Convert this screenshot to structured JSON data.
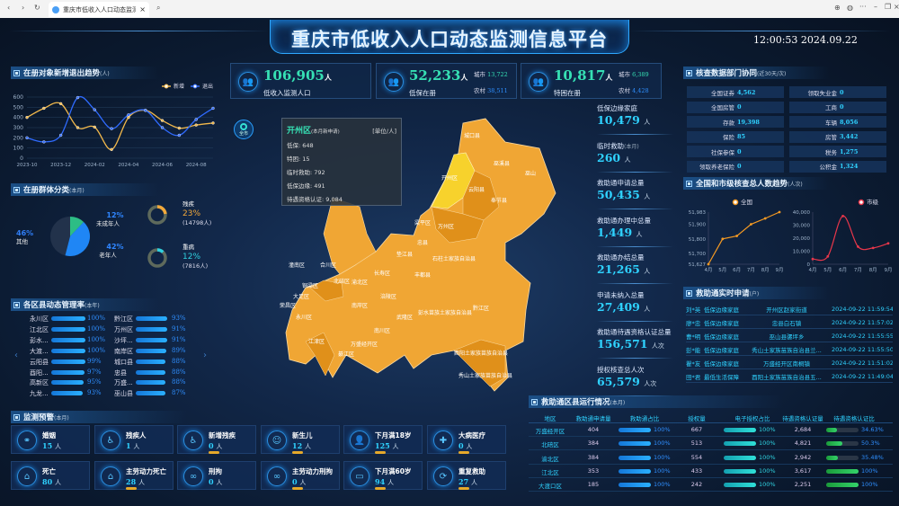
{
  "browser": {
    "tab_title": "重庆市低收入人口动态监测信息",
    "close": "×"
  },
  "header": {
    "title": "重庆市低收入人口动态监测信息平台",
    "clock": "12:00:53  2024.09.22"
  },
  "trend": {
    "title": "在册对象新增退出趋势",
    "unit": "(人)",
    "chart_data": {
      "type": "line",
      "x": [
        "2023-10",
        "2023-11",
        "2023-12",
        "2024-01",
        "2024-02",
        "2024-03",
        "2024-04",
        "2024-05",
        "2024-06",
        "2024-07",
        "2024-08",
        "2024-09"
      ],
      "xticks": [
        "2023-10",
        "2023-12",
        "2024-02",
        "2024-04",
        "2024-06",
        "2024-08"
      ],
      "ylim": [
        0,
        600
      ],
      "yticks": [
        0,
        100,
        200,
        300,
        400,
        500,
        600
      ],
      "legend": "top-right",
      "series": [
        {
          "name": "新增",
          "color": "#f2b84b",
          "values": [
            400,
            490,
            535,
            300,
            305,
            85,
            400,
            470,
            370,
            295,
            325,
            345
          ]
        },
        {
          "name": "退出",
          "color": "#2f6bff",
          "values": [
            200,
            160,
            225,
            595,
            475,
            290,
            425,
            470,
            300,
            225,
            380,
            490
          ]
        }
      ]
    }
  },
  "groups": {
    "title": "在册群体分类",
    "unit": "(本月)",
    "chart_data": {
      "type": "pie",
      "slices": [
        {
          "label": "其他",
          "value": 46,
          "pct": "46%",
          "color": "#24344f"
        },
        {
          "label": "未成年人",
          "value": 12,
          "pct": "12%",
          "color": "#2dbd85"
        },
        {
          "label": "老年人",
          "value": 42,
          "pct": "42%",
          "color": "#1f86f5"
        }
      ]
    },
    "donuts": [
      {
        "label": "残疾",
        "pct": "23%",
        "value": 23,
        "count": "(14798人)",
        "color": "#f2a93b"
      },
      {
        "label": "重病",
        "pct": "12%",
        "value": 12,
        "count": "(7816人)",
        "color": "#2fd2e0"
      }
    ]
  },
  "rates": {
    "title": "各区县动态管理率",
    "unit": "(本年)",
    "left": [
      {
        "name": "永川区",
        "pct": "100%",
        "v": 100
      },
      {
        "name": "江北区",
        "pct": "100%",
        "v": 100
      },
      {
        "name": "彭水...",
        "pct": "100%",
        "v": 100
      },
      {
        "name": "大渡...",
        "pct": "100%",
        "v": 100
      },
      {
        "name": "云阳县",
        "pct": "99%",
        "v": 99
      },
      {
        "name": "酉阳...",
        "pct": "97%",
        "v": 97
      },
      {
        "name": "高新区",
        "pct": "95%",
        "v": 95
      },
      {
        "name": "九龙...",
        "pct": "93%",
        "v": 93
      }
    ],
    "right": [
      {
        "name": "黔江区",
        "pct": "93%",
        "v": 93
      },
      {
        "name": "万州区",
        "pct": "91%",
        "v": 91
      },
      {
        "name": "沙坪...",
        "pct": "91%",
        "v": 91
      },
      {
        "name": "南岸区",
        "pct": "89%",
        "v": 89
      },
      {
        "name": "城口县",
        "pct": "88%",
        "v": 88
      },
      {
        "name": "忠县",
        "pct": "88%",
        "v": 88
      },
      {
        "name": "万盛...",
        "pct": "88%",
        "v": 88
      },
      {
        "name": "巫山县",
        "pct": "87%",
        "v": 87
      }
    ],
    "prev": "‹",
    "next": "›"
  },
  "alerts": {
    "title": "监测预警",
    "unit": "(本月)",
    "unit_person": "人",
    "items": [
      {
        "name": "婚姻",
        "value": "15",
        "icon": "marriage-icon",
        "g": "⚭",
        "pill": false
      },
      {
        "name": "残疾人",
        "value": "1",
        "icon": "wheelchair-icon",
        "g": "♿",
        "pill": false
      },
      {
        "name": "新增残疾",
        "value": "0",
        "icon": "wheelchair-icon",
        "g": "♿",
        "pill": true
      },
      {
        "name": "新生儿",
        "value": "12",
        "icon": "baby-icon",
        "g": "☺",
        "pill": true
      },
      {
        "name": "下月满18岁",
        "value": "125",
        "icon": "person-icon",
        "g": "👤",
        "pill": true
      },
      {
        "name": "大病医疗",
        "value": "0",
        "icon": "medical-icon",
        "g": "✚",
        "pill": true
      },
      {
        "name": "死亡",
        "value": "80",
        "icon": "tombstone-icon",
        "g": "⌂",
        "pill": false
      },
      {
        "name": "主劳动力死亡",
        "value": "28",
        "icon": "tombstone-icon",
        "g": "⌂",
        "pill": true
      },
      {
        "name": "刑拘",
        "value": "0",
        "icon": "handcuffs-icon",
        "g": "∞",
        "pill": false
      },
      {
        "name": "主劳动力刑拘",
        "value": "0",
        "icon": "handcuffs-icon",
        "g": "∞",
        "pill": true
      },
      {
        "name": "下月满60岁",
        "value": "94",
        "icon": "id-card-icon",
        "g": "▭",
        "pill": true
      },
      {
        "name": "重复救助",
        "value": "27",
        "icon": "repeat-aid-icon",
        "g": "⟳",
        "pill": true
      }
    ]
  },
  "top_cards": [
    {
      "value": "106,905",
      "unit": "人",
      "label": "低收入监测人口"
    },
    {
      "value": "52,233",
      "unit": "人",
      "label": "低保在册",
      "city_label": "城市",
      "city": "13,722",
      "rural_label": "农村",
      "rural": "38,511"
    },
    {
      "value": "10,817",
      "unit": "人",
      "label": "特困在册",
      "city_label": "城市",
      "city": "6,389",
      "rural_label": "农村",
      "rural": "4,428"
    }
  ],
  "map": {
    "all_button": "全市",
    "tooltip": {
      "district": "开州区",
      "sub": "(本月新申请)",
      "unit": "[单位/人]",
      "lines": [
        "低保: 648",
        "特困: 15",
        "临时救助: 792",
        "低保边缘: 491",
        "待遇资格认证: 9,084"
      ]
    },
    "labels": [
      "城口县",
      "巫溪县",
      "开州区",
      "巫山",
      "云阳县",
      "奉节县",
      "梁平区",
      "万州区",
      "忠县",
      "垫江县",
      "石柱土家族自治县",
      "潼南区",
      "合川区",
      "长寿区",
      "丰都县",
      "铜梁区",
      "北碚区",
      "渝北区",
      "大足区",
      "涪陵区",
      "荣昌区",
      "永川区",
      "南岸区",
      "武隆区",
      "黔江区",
      "彭水苗族土家族自治县",
      "江津区",
      "南川区",
      "万盛经开区",
      "綦江区",
      "酉阳土家族苗族自治县",
      "秀山土家族苗族自治县"
    ],
    "colors": {
      "base": "#f0a634",
      "dark": "#e0901a",
      "highlight": "#f7d22c"
    }
  },
  "stats": [
    {
      "label": "低保边缘家庭",
      "value": "10,479",
      "unit": "人"
    },
    {
      "label": "临时救助",
      "sub": "(本月)",
      "value": "260",
      "unit": "人"
    },
    {
      "label": "救助通申请总量",
      "value": "50,435",
      "unit": "人"
    },
    {
      "label": "救助通办理中总量",
      "value": "1,449",
      "unit": "人"
    },
    {
      "label": "救助通办结总量",
      "value": "21,265",
      "unit": "人"
    },
    {
      "label": "申请未纳入总量",
      "value": "27,409",
      "unit": "人"
    },
    {
      "label": "救助通待遇资格认证总量",
      "value": "156,571",
      "unit": "人次"
    },
    {
      "label": "授权核查总人次",
      "value": "65,579",
      "unit": "人次"
    }
  ],
  "dept": {
    "title": "核查数据部门协同",
    "unit": "(近30天/次)",
    "cells": [
      [
        "全国证券",
        "4,562"
      ],
      [
        "领取失业金",
        "0"
      ],
      [
        "全国房管",
        "0"
      ],
      [
        "工商",
        "0"
      ],
      [
        "存款",
        "19,398"
      ],
      [
        "车辆",
        "8,056"
      ],
      [
        "保险",
        "85"
      ],
      [
        "房管",
        "3,442"
      ],
      [
        "社保参保",
        "0"
      ],
      [
        "税务",
        "1,275"
      ],
      [
        "领取养老保险",
        "0"
      ],
      [
        "公积金",
        "1,324"
      ]
    ]
  },
  "check_trend": {
    "title": "全国和市级核查总人数趋势",
    "unit": "(人次)",
    "chart_data": [
      {
        "type": "line",
        "legend": "top",
        "x": [
          "4月",
          "5月",
          "6月",
          "7月",
          "8月",
          "9月"
        ],
        "ylim": [
          51627,
          51983
        ],
        "yticks": [
          "51,627",
          "51,700",
          "51,800",
          "51,900",
          "51,983"
        ],
        "ytick_values": [
          51627,
          51700,
          51800,
          51900,
          51983
        ],
        "series": [
          {
            "name": "全国",
            "color": "#f59a23",
            "values": [
              51627,
              51800,
              51820,
              51900,
              51940,
              51983
            ]
          }
        ]
      },
      {
        "type": "line",
        "legend": "top-right",
        "x": [
          "4月",
          "5月",
          "6月",
          "7月",
          "8月",
          "9月"
        ],
        "ylim": [
          0,
          40000
        ],
        "yticks": [
          "0",
          "10,000",
          "20,000",
          "30,000",
          "40,000"
        ],
        "ytick_values": [
          0,
          10000,
          20000,
          30000,
          40000
        ],
        "series": [
          {
            "name": "市级",
            "color": "#e8364a",
            "values": [
              4000,
              6000,
              37000,
              13500,
              12500,
              16000
            ]
          }
        ]
      }
    ]
  },
  "realtime": {
    "title": "救助通实时申请",
    "unit": "(户)",
    "rows": [
      [
        "刘*英",
        "低保边缘家庭",
        "开州区赵家街道",
        "2024-09-22 11:59:54"
      ],
      [
        "廖*忠",
        "低保边缘家庭",
        "忠县白石镇",
        "2024-09-22 11:57:02"
      ],
      [
        "曹*明",
        "低保边缘家庭",
        "巫山县骡坪乡",
        "2024-09-22 11:55:55"
      ],
      [
        "彭*能",
        "低保边缘家庭",
        "秀山土家族苗族自治县兰...",
        "2024-09-22 11:55:50"
      ],
      [
        "瞿*友",
        "低保边缘家庭",
        "万盛经开区南桐镇",
        "2024-09-22 11:51:02"
      ],
      [
        "田*君",
        "最低生活保障",
        "酉阳土家族苗族自治县五...",
        "2024-09-22 11:49:04"
      ]
    ]
  },
  "county_table": {
    "title": "救助通区县运行情况",
    "unit": "(本月)",
    "headers": [
      "地区",
      "救助通申请量",
      "救助通占比",
      "授权量",
      "电子授权占比",
      "待遇资格认证量",
      "待遇资格认证比"
    ],
    "rows": [
      {
        "area": "万盛经开区",
        "apply": "404",
        "ratio": "100%",
        "ratio_v": 100,
        "auth": "667",
        "eauth": "100%",
        "eauth_v": 100,
        "cert": "2,684",
        "cert_ratio": "34.63%",
        "cert_v": 34.63
      },
      {
        "area": "北碚区",
        "apply": "384",
        "ratio": "100%",
        "ratio_v": 100,
        "auth": "513",
        "eauth": "100%",
        "eauth_v": 100,
        "cert": "4,821",
        "cert_ratio": "50.3%",
        "cert_v": 50.3
      },
      {
        "area": "渝北区",
        "apply": "384",
        "ratio": "100%",
        "ratio_v": 100,
        "auth": "554",
        "eauth": "100%",
        "eauth_v": 100,
        "cert": "2,942",
        "cert_ratio": "35.48%",
        "cert_v": 35.48
      },
      {
        "area": "江北区",
        "apply": "353",
        "ratio": "100%",
        "ratio_v": 100,
        "auth": "433",
        "eauth": "100%",
        "eauth_v": 100,
        "cert": "3,617",
        "cert_ratio": "100%",
        "cert_v": 100
      },
      {
        "area": "大渡口区",
        "apply": "185",
        "ratio": "100%",
        "ratio_v": 100,
        "auth": "242",
        "eauth": "100%",
        "eauth_v": 100,
        "cert": "2,251",
        "cert_ratio": "100%",
        "cert_v": 100
      }
    ]
  }
}
